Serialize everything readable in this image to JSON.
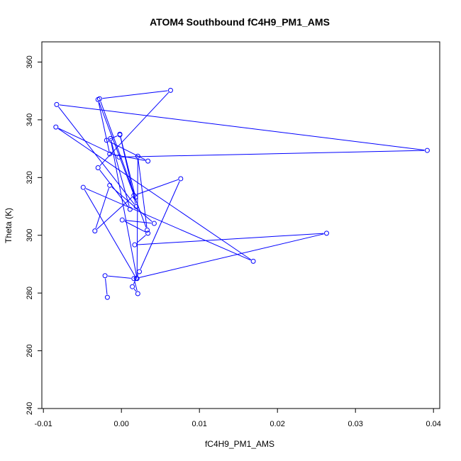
{
  "chart_data": {
    "type": "line",
    "title": "ATOM4 Southbound fC4H9_PM1_AMS",
    "xlabel": "fC4H9_PM1_AMS",
    "ylabel": "Theta (K)",
    "xlim": [
      -0.0102,
      0.0408
    ],
    "ylim": [
      240,
      367
    ],
    "x_ticks": [
      -0.01,
      0.0,
      0.01,
      0.02,
      0.03,
      0.04
    ],
    "x_tick_labels": [
      "-0.01",
      "0.00",
      "0.01",
      "0.02",
      "0.03",
      "0.04"
    ],
    "y_ticks": [
      240,
      260,
      280,
      300,
      320,
      340,
      360
    ],
    "y_tick_labels": [
      "240",
      "260",
      "280",
      "300",
      "320",
      "340",
      "360"
    ],
    "series_color": "#0000ff",
    "markers": "open-circle",
    "connected": true,
    "series": [
      {
        "x": [
          -0.0018,
          -0.0021,
          0.0016,
          0.0021,
          0.0014,
          0.0023,
          0.0076,
          0.0016,
          -0.0034,
          -0.0015,
          0.0042,
          0.0001,
          0.0034,
          0.0017,
          0.0263,
          0.0019,
          -0.0049,
          0.0169,
          -0.0084,
          -0.0003,
          0.0392,
          -0.0083,
          0.0019,
          -0.0002,
          0.0018,
          -0.0028,
          0.0063,
          -0.003,
          0.0011,
          -0.0014,
          0.002,
          0.0021,
          0.0033,
          -0.003,
          -0.0015,
          0.0034,
          -0.0019,
          -0.0002
        ],
        "y": [
          278.5,
          286.0,
          285.0,
          279.8,
          282.2,
          287.4,
          319.6,
          313.8,
          301.5,
          317.3,
          304.1,
          305.3,
          300.7,
          296.7,
          300.7,
          285.1,
          316.6,
          291.0,
          337.5,
          327.1,
          329.4,
          345.3,
          309.9,
          335.0,
          313.2,
          347.3,
          350.2,
          323.4,
          309.0,
          333.5,
          285.0,
          327.4,
          301.8,
          347.0,
          328.2,
          325.7,
          332.9,
          334.8
        ]
      }
    ]
  }
}
